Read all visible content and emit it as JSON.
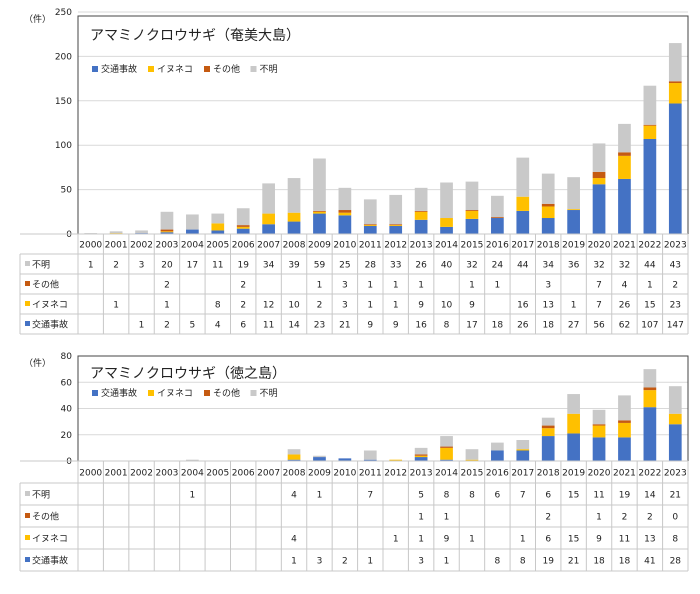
{
  "colors": {
    "交通事故": "#4472c4",
    "イヌネコ": "#ffc000",
    "その他": "#c55a11",
    "不明": "#c9c9c9"
  },
  "chart_data": [
    {
      "type": "bar",
      "stacked": true,
      "title": "アマミノクロウサギ（奄美大島）",
      "ylabel": "（件）",
      "ylim": [
        0,
        250
      ],
      "yticks": [
        0,
        50,
        100,
        150,
        200,
        250
      ],
      "grid": true,
      "legend_position": "top-left",
      "categories": [
        "2000",
        "2001",
        "2002",
        "2003",
        "2004",
        "2005",
        "2006",
        "2007",
        "2008",
        "2009",
        "2010",
        "2011",
        "2012",
        "2013",
        "2014",
        "2015",
        "2016",
        "2017",
        "2018",
        "2019",
        "2020",
        "2021",
        "2022",
        "2023"
      ],
      "series": [
        {
          "name": "交通事故",
          "values": [
            null,
            null,
            1,
            2,
            5,
            4,
            6,
            11,
            14,
            23,
            21,
            9,
            9,
            16,
            8,
            17,
            18,
            26,
            18,
            27,
            56,
            62,
            107,
            147
          ]
        },
        {
          "name": "イヌネコ",
          "values": [
            null,
            1,
            null,
            1,
            null,
            8,
            2,
            12,
            10,
            2,
            3,
            1,
            1,
            9,
            10,
            9,
            null,
            16,
            13,
            1,
            7,
            26,
            15,
            23
          ]
        },
        {
          "name": "その他",
          "values": [
            null,
            null,
            null,
            2,
            null,
            null,
            2,
            null,
            null,
            1,
            3,
            1,
            1,
            1,
            null,
            1,
            1,
            null,
            3,
            null,
            7,
            4,
            1,
            2
          ]
        },
        {
          "name": "不明",
          "values": [
            1,
            2,
            3,
            20,
            17,
            11,
            19,
            34,
            39,
            59,
            25,
            28,
            33,
            26,
            40,
            32,
            24,
            44,
            34,
            36,
            32,
            32,
            44,
            43
          ]
        }
      ],
      "table_row_order": [
        "不明",
        "その他",
        "イヌネコ",
        "交通事故"
      ]
    },
    {
      "type": "bar",
      "stacked": true,
      "title": "アマミノクロウサギ（徳之島）",
      "ylabel": "（件）",
      "ylim": [
        0,
        80
      ],
      "yticks": [
        0,
        20,
        40,
        60,
        80
      ],
      "grid": true,
      "legend_position": "top-left",
      "categories": [
        "2000",
        "2001",
        "2002",
        "2003",
        "2004",
        "2005",
        "2006",
        "2007",
        "2008",
        "2009",
        "2010",
        "2011",
        "2012",
        "2013",
        "2014",
        "2015",
        "2016",
        "2017",
        "2018",
        "2019",
        "2020",
        "2021",
        "2022",
        "2023"
      ],
      "series": [
        {
          "name": "交通事故",
          "values": [
            null,
            null,
            null,
            null,
            null,
            null,
            null,
            null,
            1,
            3,
            2,
            1,
            null,
            3,
            1,
            null,
            8,
            8,
            19,
            21,
            18,
            18,
            41,
            28
          ]
        },
        {
          "name": "イヌネコ",
          "values": [
            null,
            null,
            null,
            null,
            null,
            null,
            null,
            null,
            4,
            null,
            null,
            null,
            1,
            1,
            9,
            1,
            null,
            1,
            6,
            15,
            9,
            11,
            13,
            8
          ]
        },
        {
          "name": "その他",
          "values": [
            null,
            null,
            null,
            null,
            null,
            null,
            null,
            null,
            null,
            null,
            null,
            null,
            null,
            1,
            1,
            null,
            null,
            null,
            2,
            null,
            1,
            2,
            2,
            0
          ]
        },
        {
          "name": "不明",
          "values": [
            null,
            null,
            null,
            null,
            1,
            null,
            null,
            null,
            4,
            1,
            null,
            7,
            null,
            5,
            8,
            8,
            6,
            7,
            6,
            15,
            11,
            19,
            14,
            21
          ]
        }
      ],
      "table_row_order": [
        "不明",
        "その他",
        "イヌネコ",
        "交通事故"
      ]
    }
  ]
}
